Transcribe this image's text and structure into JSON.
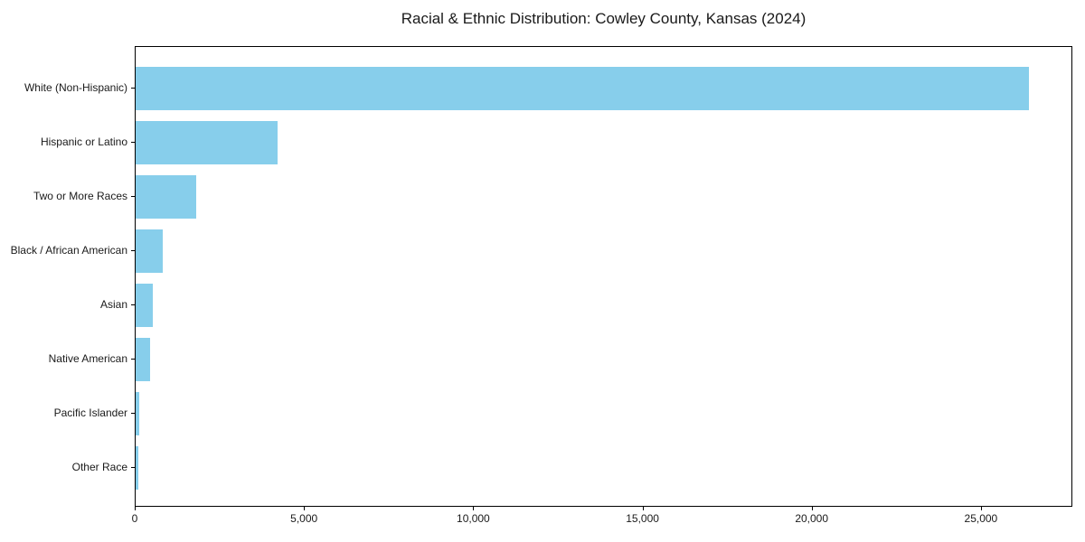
{
  "chart_data": {
    "type": "bar",
    "orientation": "horizontal",
    "title": "Racial & Ethnic Distribution: Cowley County, Kansas (2024)",
    "categories": [
      "White (Non-Hispanic)",
      "Hispanic or Latino",
      "Two or More Races",
      "Black / African American",
      "Asian",
      "Native American",
      "Pacific Islander",
      "Other Race"
    ],
    "values": [
      26400,
      4200,
      1800,
      800,
      500,
      430,
      100,
      70
    ],
    "bar_color": "#87CEEB",
    "xlabel": "",
    "ylabel": "",
    "xlim": [
      0,
      27700
    ],
    "xticks": [
      0,
      5000,
      10000,
      15000,
      20000,
      25000
    ],
    "xtick_labels": [
      "0",
      "5,000",
      "10,000",
      "15,000",
      "20,000",
      "25,000"
    ],
    "grid": false,
    "legend": "none",
    "plot_border_color": "#000000",
    "background_color": "#ffffff"
  }
}
